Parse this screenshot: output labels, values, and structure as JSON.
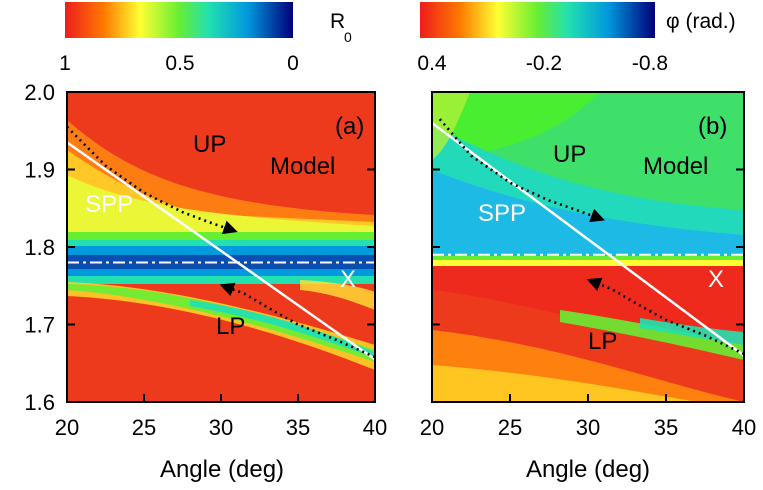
{
  "figure": {
    "panels": [
      {
        "id": "a",
        "panel_label": "(a)",
        "colorbar": {
          "label_main": "R",
          "label_sub": "0",
          "ticks": [
            "1",
            "0.5",
            "0"
          ]
        },
        "annotations": {
          "up": "UP",
          "lp": "LP",
          "model": "Model",
          "spp": "SPP",
          "x": "X"
        }
      },
      {
        "id": "b",
        "panel_label": "(b)",
        "colorbar": {
          "label_main": "φ (rad.)",
          "label_sub": "",
          "ticks": [
            "0.4",
            "-0.2",
            "-0.8"
          ]
        },
        "annotations": {
          "up": "UP",
          "lp": "LP",
          "model": "Model",
          "spp": "SPP",
          "x": "X"
        }
      }
    ],
    "xlabel": "Angle (deg)",
    "xticks": [
      "20",
      "25",
      "30",
      "35",
      "40"
    ],
    "yticks": [
      "2.0",
      "1.9",
      "1.8",
      "1.7",
      "1.6"
    ]
  },
  "chart_data": [
    {
      "type": "heatmap",
      "panel": "a",
      "quantity": "R0",
      "xlabel": "Angle (deg)",
      "ylabel": "",
      "xlim": [
        20,
        40
      ],
      "ylim": [
        1.6,
        2.0
      ],
      "colorscale": {
        "min": 0,
        "max": 1,
        "stops": [
          "#00007a",
          "#0099dd",
          "#22e0b0",
          "#66ee33",
          "#ffff33",
          "#ff7a00",
          "#ee1c1c"
        ]
      },
      "exciton_energy": 1.78,
      "spp_line": {
        "x": [
          20,
          40
        ],
        "y": [
          1.935,
          1.655
        ]
      },
      "up_branch_arrow": {
        "x": [
          20,
          22.5,
          25,
          27.5,
          29.5,
          31
        ],
        "y": [
          1.955,
          1.905,
          1.87,
          1.845,
          1.83,
          1.82
        ]
      },
      "lp_branch_arrow": {
        "x": [
          40,
          37.5,
          35,
          33.2,
          31.5,
          30
        ],
        "y": [
          1.658,
          1.68,
          1.7,
          1.72,
          1.74,
          1.751
        ]
      },
      "grid": false
    },
    {
      "type": "heatmap",
      "panel": "b",
      "quantity": "phase",
      "xlabel": "Angle (deg)",
      "ylabel": "",
      "xlim": [
        20,
        40
      ],
      "ylim": [
        1.6,
        2.0
      ],
      "colorscale": {
        "min": -0.8,
        "max": 0.4,
        "stops": [
          "#00007a",
          "#0099dd",
          "#22e0b0",
          "#66ee33",
          "#ffff33",
          "#ff7a00",
          "#ee1c1c"
        ]
      },
      "exciton_energy": 1.79,
      "spp_line": {
        "x": [
          20,
          40
        ],
        "y": [
          1.96,
          1.66
        ]
      },
      "up_branch_arrow": {
        "x": [
          20.5,
          22.5,
          25,
          27.5,
          29.5,
          31
        ],
        "y": [
          1.965,
          1.918,
          1.883,
          1.86,
          1.846,
          1.835
        ]
      },
      "lp_branch_arrow": {
        "x": [
          40,
          37.5,
          35,
          33.2,
          31.5,
          30
        ],
        "y": [
          1.662,
          1.686,
          1.706,
          1.726,
          1.746,
          1.758
        ]
      },
      "grid": false
    }
  ]
}
